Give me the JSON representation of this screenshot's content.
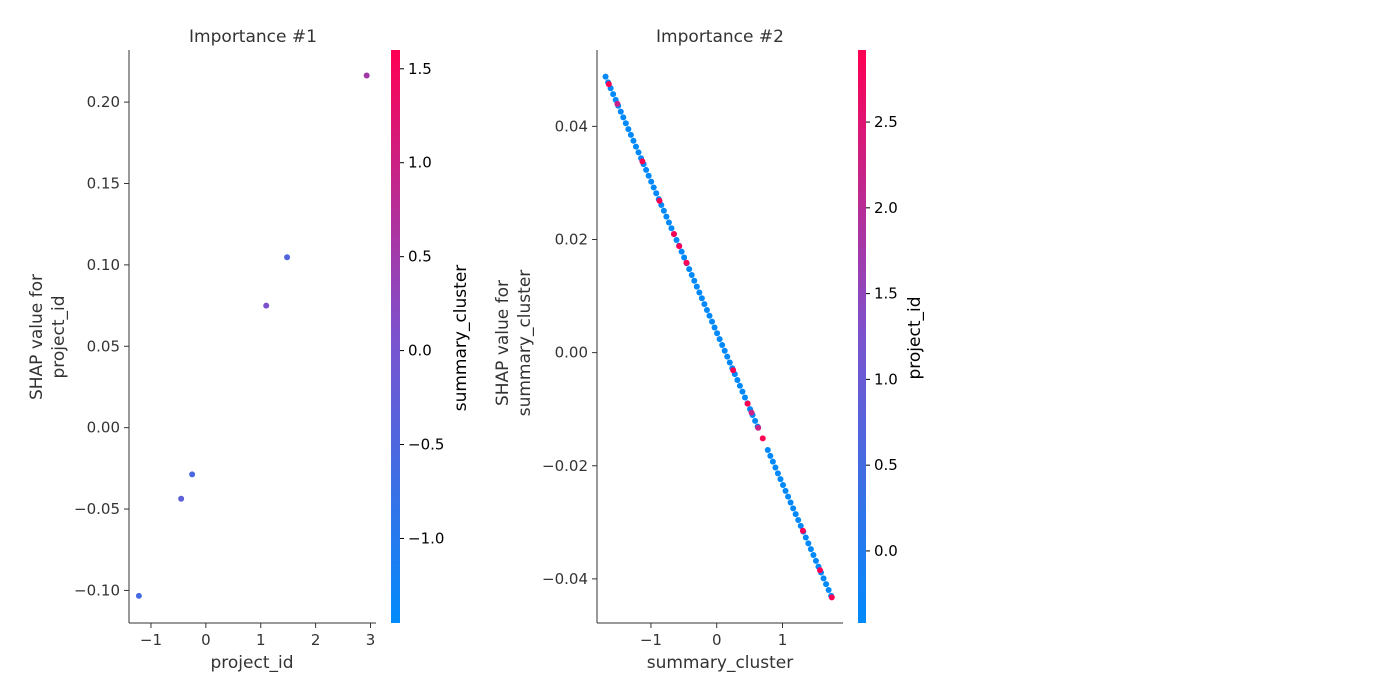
{
  "chart_data": [
    {
      "type": "scatter",
      "title": "Importance #1",
      "xlabel": "project_id",
      "ylabel": [
        "SHAP value for",
        "project_id"
      ],
      "xlim": [
        -1.4,
        3.1
      ],
      "ylim": [
        -0.12,
        0.232
      ],
      "xticks": [
        -1,
        0,
        1,
        2,
        3
      ],
      "xtick_labels": [
        "−1",
        "0",
        "1",
        "2",
        "3"
      ],
      "yticks": [
        -0.1,
        -0.05,
        0.0,
        0.05,
        0.1,
        0.15,
        0.2
      ],
      "ytick_labels": [
        "−0.10",
        "−0.05",
        "0.00",
        "0.05",
        "0.10",
        "0.15",
        "0.20"
      ],
      "points": [
        {
          "x": -1.22,
          "y": -0.1033,
          "c": -0.6
        },
        {
          "x": -0.45,
          "y": -0.0437,
          "c": -0.3
        },
        {
          "x": -0.25,
          "y": -0.0287,
          "c": -0.55
        },
        {
          "x": 1.1,
          "y": 0.075,
          "c": 0.1
        },
        {
          "x": 1.48,
          "y": 0.1047,
          "c": -0.45
        },
        {
          "x": 2.93,
          "y": 0.2163,
          "c": 0.55
        }
      ],
      "colorbar": {
        "label": "summary_cluster",
        "range": [
          -1.45,
          1.6
        ],
        "ticks": [
          -1.0,
          -0.5,
          0.0,
          0.5,
          1.0,
          1.5
        ],
        "tick_labels": [
          "−1.0",
          "−0.5",
          "0.0",
          "0.5",
          "1.0",
          "1.5"
        ]
      }
    },
    {
      "type": "scatter",
      "title": "Importance #2",
      "xlabel": "summary_cluster",
      "ylabel": [
        "SHAP value for",
        "summary_cluster"
      ],
      "xlim": [
        -1.82,
        1.92
      ],
      "ylim": [
        -0.0478,
        0.0535
      ],
      "xticks": [
        -1,
        0,
        1
      ],
      "xtick_labels": [
        "−1",
        "0",
        "1"
      ],
      "yticks": [
        -0.04,
        -0.02,
        0.0,
        0.02,
        0.04
      ],
      "ytick_labels": [
        "−0.04",
        "−0.02",
        "0.00",
        "0.02",
        "0.04"
      ],
      "line_fit": {
        "x_start": -1.69,
        "x_end": 1.74,
        "y_start": 0.0488,
        "y_end": -0.043,
        "n_points": 90,
        "gap_x": [
          0.66,
          0.74
        ]
      },
      "highlight_points": [
        {
          "x": -1.64,
          "c": 2.9
        },
        {
          "x": -1.51,
          "c": 2.2
        },
        {
          "x": -1.13,
          "c": 2.9
        },
        {
          "x": -0.87,
          "c": 2.9
        },
        {
          "x": -0.65,
          "c": 2.9
        },
        {
          "x": -0.57,
          "c": 2.9
        },
        {
          "x": -0.46,
          "c": 2.9
        },
        {
          "x": 0.25,
          "c": 2.9
        },
        {
          "x": 0.47,
          "c": 2.9
        },
        {
          "x": 0.53,
          "c": 2.2
        },
        {
          "x": 0.63,
          "c": 2.2
        },
        {
          "x": 0.7,
          "c": 2.9
        },
        {
          "x": 1.31,
          "c": 2.9
        },
        {
          "x": 1.57,
          "c": 2.9
        },
        {
          "x": 1.75,
          "c": 2.9
        }
      ],
      "base_color_value": -0.4,
      "colorbar": {
        "label": "project_id",
        "range": [
          -0.42,
          2.92
        ],
        "ticks": [
          0.0,
          0.5,
          1.0,
          1.5,
          2.0,
          2.5
        ],
        "tick_labels": [
          "0.0",
          "0.5",
          "1.0",
          "1.5",
          "2.0",
          "2.5"
        ]
      }
    }
  ]
}
